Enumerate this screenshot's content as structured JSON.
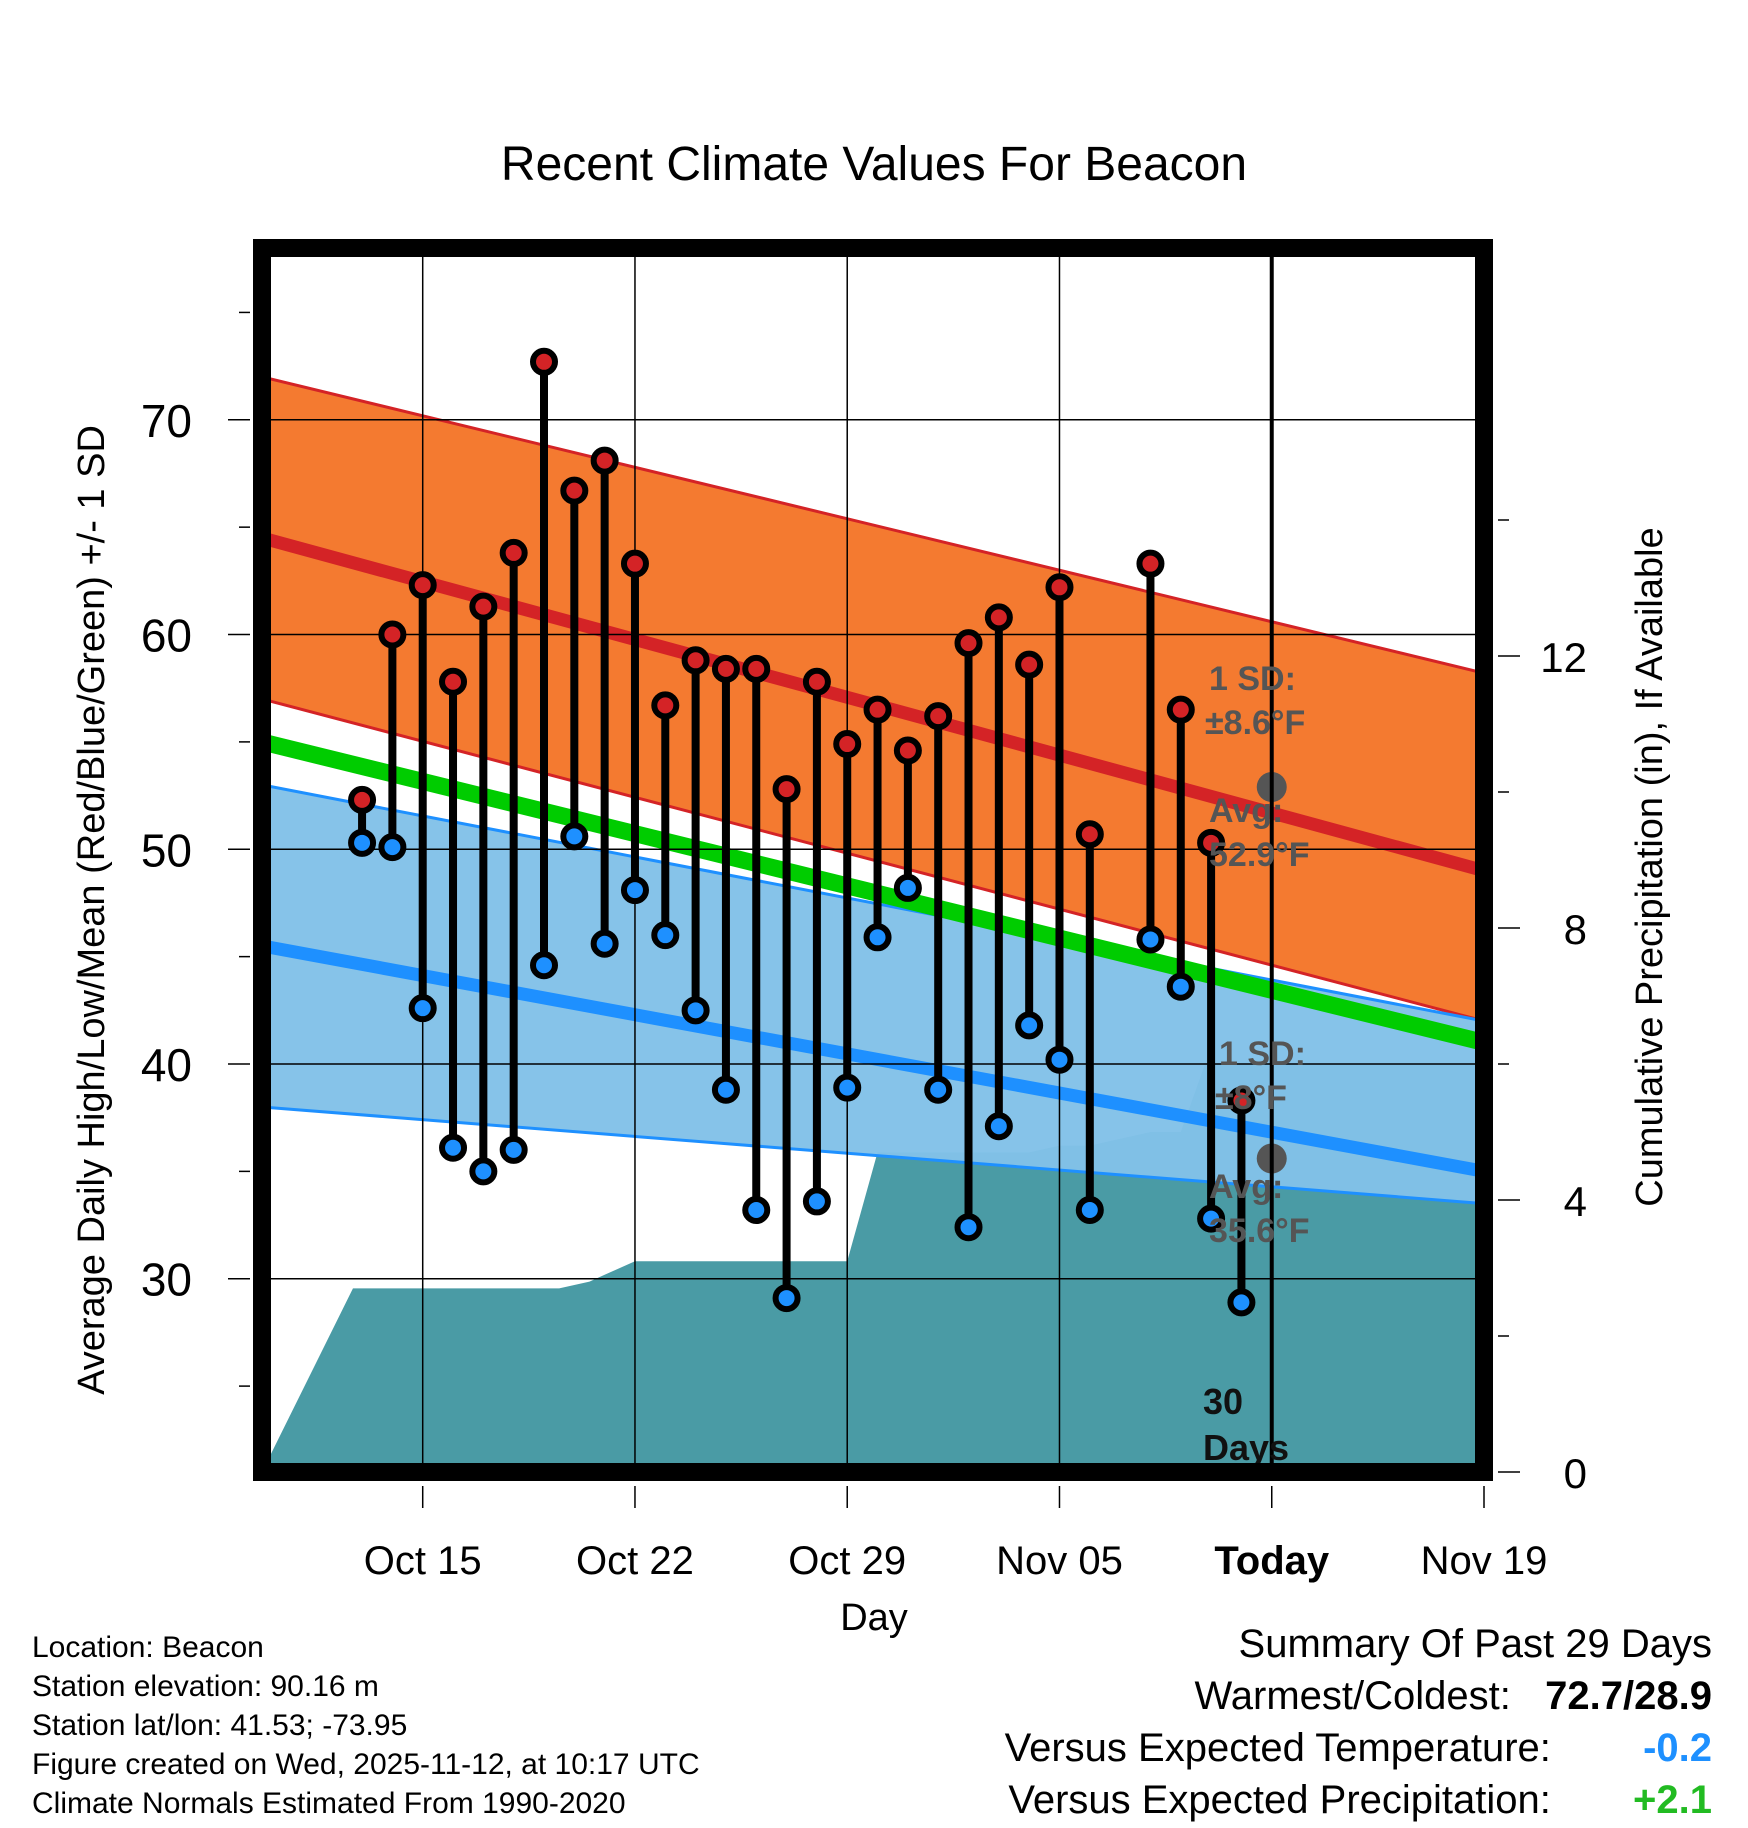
{
  "chart_data": {
    "type": "line",
    "title": "Recent Climate Values For Beacon",
    "xlabel": "Day",
    "ylabel": "Average Daily High/Low/Mean (Red/Blue/Green) +/- 1 SD",
    "y2label": "Cumulative Precipitation (in), If Available",
    "xlim_days": [
      -33.3,
      7
    ],
    "ylim": [
      21,
      78
    ],
    "y2lim": [
      0,
      18
    ],
    "yticks": [
      30,
      40,
      50,
      60,
      70
    ],
    "y2ticks": [
      0,
      4,
      8,
      12
    ],
    "xticks": [
      {
        "day": -28,
        "label": "Oct 15"
      },
      {
        "day": -21,
        "label": "Oct 22"
      },
      {
        "day": -14,
        "label": "Oct 29"
      },
      {
        "day": -7,
        "label": "Nov 05"
      },
      {
        "day": 0,
        "label": "Today"
      },
      {
        "day": 7,
        "label": "Nov 19"
      }
    ],
    "normal_high": {
      "mean": [
        64.5,
        49.0
      ],
      "sd_upper": [
        72.0,
        58.2
      ],
      "sd_lower": [
        57.0,
        42.0
      ]
    },
    "normal_low": {
      "mean": [
        45.5,
        35.0
      ],
      "sd_upper": [
        53.0,
        42.0
      ],
      "sd_lower": [
        38.0,
        33.5
      ]
    },
    "normal_mean": [
      55.0,
      41.0
    ],
    "days": [
      -30,
      -29,
      -28,
      -27,
      -26,
      -25,
      -24,
      -23,
      -22,
      -21,
      -20,
      -19,
      -18,
      -17,
      -16,
      -15,
      -14,
      -13,
      -12,
      -11,
      -10,
      -9,
      -8,
      -7,
      -6,
      -4,
      -3,
      -2,
      -1
    ],
    "highs": [
      52.3,
      60.0,
      62.3,
      57.8,
      61.3,
      63.8,
      72.7,
      66.7,
      68.1,
      63.3,
      56.7,
      58.8,
      58.4,
      58.4,
      52.8,
      57.8,
      54.9,
      56.5,
      54.6,
      56.2,
      59.6,
      60.8,
      58.6,
      62.2,
      50.7,
      63.3,
      56.5,
      50.3,
      38.3
    ],
    "lows": [
      50.3,
      50.1,
      42.6,
      36.1,
      35.0,
      36.0,
      44.6,
      50.6,
      45.6,
      48.1,
      46.0,
      42.5,
      38.8,
      33.2,
      29.1,
      33.6,
      38.9,
      45.9,
      48.2,
      38.8,
      32.4,
      37.1,
      41.8,
      40.2,
      33.2,
      45.8,
      43.6,
      32.8,
      28.9
    ],
    "precip_days": [
      -33.3,
      -30.3,
      -23.5,
      -22.5,
      -22,
      -21,
      -14.3,
      -14,
      -13,
      -12,
      -11,
      -9,
      -8,
      -7,
      -6,
      -5,
      -4,
      -3,
      -2.2,
      -1.8,
      -0.5,
      7
    ],
    "precip_values": [
      0,
      2.7,
      2.7,
      2.8,
      2.9,
      3.1,
      3.1,
      3.1,
      4.7,
      4.7,
      4.7,
      4.7,
      4.7,
      4.8,
      4.8,
      4.9,
      5.0,
      5.0,
      6.0,
      6.0,
      6.0,
      6.0
    ],
    "today_high_avg": 52.9,
    "today_low_avg": 35.6
  },
  "annotations": {
    "high_sd_label": "1 SD:",
    "high_sd_value": "±8.6°F",
    "high_avg_label": "Avg:",
    "high_avg_value": "52.9°F",
    "low_sd_label": "1 SD:",
    "low_sd_value": "±8°F",
    "low_avg_label": "Avg:",
    "low_avg_value": "35.6°F",
    "days_number": "30",
    "days_word": "Days"
  },
  "meta": {
    "location": "Location: Beacon",
    "elevation": "Station elevation: 90.16 m",
    "latlon": "Station lat/lon: 41.53; -73.95",
    "created": "Figure created on Wed, 2025-11-12, at 10:17 UTC",
    "normals": "Climate Normals Estimated From 1990-2020"
  },
  "summary": {
    "title": "Summary Of Past 29 Days",
    "warm_cold_label": "Warmest/Coldest:",
    "warm_cold_value": "72.7/28.9",
    "temp_label": "Versus Expected Temperature:",
    "temp_value": "-0.2",
    "precip_label": "Versus Expected Precipitation:",
    "precip_value": "+2.1"
  },
  "colors": {
    "high_band": "#f47a30",
    "high_line": "#d42326",
    "low_band": "#82c1e8",
    "low_line": "#1e90ff",
    "mean_line": "#00cc00",
    "precip": "#4a9ba5",
    "annotation": "#555555",
    "temp_summary": "#1e90ff",
    "precip_summary": "#22bb22"
  }
}
